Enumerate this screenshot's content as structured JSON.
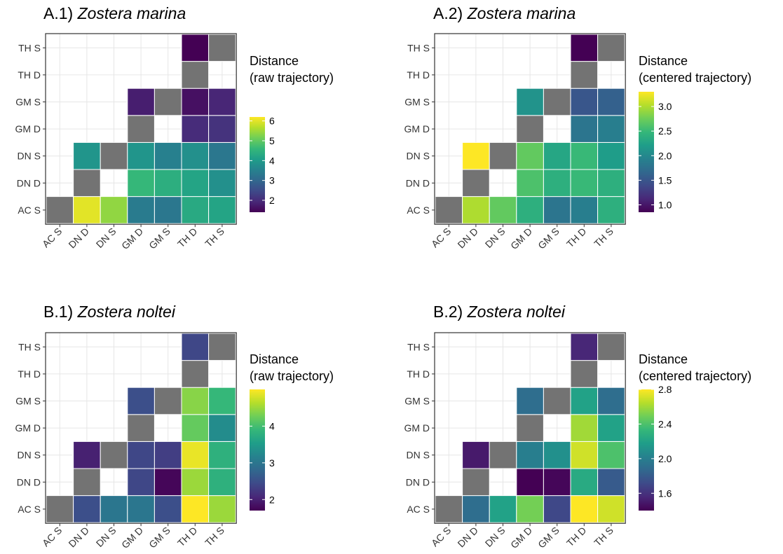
{
  "figure": {
    "background": "#ffffff"
  },
  "chart_data": [
    {
      "id": "A1",
      "type": "heatmap",
      "title_prefix": "A.1)",
      "title_species": "Zostera marina",
      "categories": [
        "AC S",
        "DN D",
        "DN S",
        "GM D",
        "GM S",
        "TH D",
        "TH S"
      ],
      "legend": {
        "title_line1": "Distance",
        "title_line2": "(raw trajectory)",
        "min": 1.4,
        "max": 6.2,
        "ticks": [
          2,
          3,
          4,
          5,
          6
        ]
      },
      "cells": [
        {
          "x": "AC S",
          "y": "AC S",
          "value": null
        },
        {
          "x": "DN D",
          "y": "AC S",
          "value": 6.0
        },
        {
          "x": "DN S",
          "y": "AC S",
          "value": 5.4
        },
        {
          "x": "GM D",
          "y": "AC S",
          "value": 3.4
        },
        {
          "x": "GM S",
          "y": "AC S",
          "value": 3.3
        },
        {
          "x": "TH D",
          "y": "AC S",
          "value": 4.3
        },
        {
          "x": "TH S",
          "y": "AC S",
          "value": 4.2
        },
        {
          "x": "DN D",
          "y": "DN D",
          "value": null
        },
        {
          "x": "GM D",
          "y": "DN D",
          "value": 4.6
        },
        {
          "x": "GM S",
          "y": "DN D",
          "value": 4.4
        },
        {
          "x": "TH D",
          "y": "DN D",
          "value": 4.2
        },
        {
          "x": "TH S",
          "y": "DN D",
          "value": 3.8
        },
        {
          "x": "DN D",
          "y": "DN S",
          "value": 3.9
        },
        {
          "x": "DN S",
          "y": "DN S",
          "value": null
        },
        {
          "x": "GM D",
          "y": "DN S",
          "value": 3.9
        },
        {
          "x": "GM S",
          "y": "DN S",
          "value": 3.5
        },
        {
          "x": "TH D",
          "y": "DN S",
          "value": 3.8
        },
        {
          "x": "TH S",
          "y": "DN S",
          "value": 3.3
        },
        {
          "x": "GM D",
          "y": "GM D",
          "value": null
        },
        {
          "x": "TH D",
          "y": "GM D",
          "value": 2.0
        },
        {
          "x": "TH S",
          "y": "GM D",
          "value": 2.1
        },
        {
          "x": "GM D",
          "y": "GM S",
          "value": 1.8
        },
        {
          "x": "GM S",
          "y": "GM S",
          "value": null
        },
        {
          "x": "TH D",
          "y": "GM S",
          "value": 1.6
        },
        {
          "x": "TH S",
          "y": "GM S",
          "value": 1.9
        },
        {
          "x": "TH D",
          "y": "TH D",
          "value": null
        },
        {
          "x": "TH D",
          "y": "TH S",
          "value": 1.4
        },
        {
          "x": "TH S",
          "y": "TH S",
          "value": null
        }
      ]
    },
    {
      "id": "A2",
      "type": "heatmap",
      "title_prefix": "A.2)",
      "title_species": "Zostera marina",
      "categories": [
        "AC S",
        "DN D",
        "DN S",
        "GM D",
        "GM S",
        "TH D",
        "TH S"
      ],
      "legend": {
        "title_line1": "Distance",
        "title_line2": "(centered trajectory)",
        "min": 0.85,
        "max": 3.3,
        "ticks": [
          1.0,
          1.5,
          2.0,
          2.5,
          3.0
        ]
      },
      "cells": [
        {
          "x": "AC S",
          "y": "AC S",
          "value": null
        },
        {
          "x": "DN D",
          "y": "AC S",
          "value": 3.0
        },
        {
          "x": "DN S",
          "y": "AC S",
          "value": 2.7
        },
        {
          "x": "GM D",
          "y": "AC S",
          "value": 2.4
        },
        {
          "x": "GM S",
          "y": "AC S",
          "value": 1.8
        },
        {
          "x": "TH D",
          "y": "AC S",
          "value": 1.9
        },
        {
          "x": "TH S",
          "y": "AC S",
          "value": 2.4
        },
        {
          "x": "DN D",
          "y": "DN D",
          "value": null
        },
        {
          "x": "GM D",
          "y": "DN D",
          "value": 2.6
        },
        {
          "x": "GM S",
          "y": "DN D",
          "value": 2.4
        },
        {
          "x": "TH D",
          "y": "DN D",
          "value": 2.5
        },
        {
          "x": "TH S",
          "y": "DN D",
          "value": 2.4
        },
        {
          "x": "DN D",
          "y": "DN S",
          "value": 3.3
        },
        {
          "x": "DN S",
          "y": "DN S",
          "value": null
        },
        {
          "x": "GM D",
          "y": "DN S",
          "value": 2.7
        },
        {
          "x": "GM S",
          "y": "DN S",
          "value": 2.3
        },
        {
          "x": "TH D",
          "y": "DN S",
          "value": 2.5
        },
        {
          "x": "TH S",
          "y": "DN S",
          "value": 2.2
        },
        {
          "x": "GM D",
          "y": "GM D",
          "value": null
        },
        {
          "x": "TH D",
          "y": "GM D",
          "value": 1.8
        },
        {
          "x": "TH S",
          "y": "GM D",
          "value": 1.9
        },
        {
          "x": "GM D",
          "y": "GM S",
          "value": 2.1
        },
        {
          "x": "GM S",
          "y": "GM S",
          "value": null
        },
        {
          "x": "TH D",
          "y": "GM S",
          "value": 1.5
        },
        {
          "x": "TH S",
          "y": "GM S",
          "value": 1.6
        },
        {
          "x": "TH D",
          "y": "TH D",
          "value": null
        },
        {
          "x": "TH D",
          "y": "TH S",
          "value": 0.85
        },
        {
          "x": "TH S",
          "y": "TH S",
          "value": null
        }
      ]
    },
    {
      "id": "B1",
      "type": "heatmap",
      "title_prefix": "B.1)",
      "title_species": "Zostera noltei",
      "categories": [
        "AC S",
        "DN D",
        "DN S",
        "GM D",
        "GM S",
        "TH D",
        "TH S"
      ],
      "legend": {
        "title_line1": "Distance",
        "title_line2": "(raw trajectory)",
        "min": 1.7,
        "max": 5.0,
        "ticks": [
          2,
          3,
          4
        ]
      },
      "cells": [
        {
          "x": "AC S",
          "y": "AC S",
          "value": null
        },
        {
          "x": "DN D",
          "y": "AC S",
          "value": 2.5
        },
        {
          "x": "DN S",
          "y": "AC S",
          "value": 3.0
        },
        {
          "x": "GM D",
          "y": "AC S",
          "value": 3.0
        },
        {
          "x": "GM S",
          "y": "AC S",
          "value": 2.5
        },
        {
          "x": "TH D",
          "y": "AC S",
          "value": 5.0
        },
        {
          "x": "TH S",
          "y": "AC S",
          "value": 4.5
        },
        {
          "x": "DN D",
          "y": "DN D",
          "value": null
        },
        {
          "x": "GM D",
          "y": "DN D",
          "value": 2.4
        },
        {
          "x": "GM S",
          "y": "DN D",
          "value": 1.75
        },
        {
          "x": "TH D",
          "y": "DN D",
          "value": 4.5
        },
        {
          "x": "TH S",
          "y": "DN D",
          "value": 3.8
        },
        {
          "x": "DN D",
          "y": "DN S",
          "value": 2.0
        },
        {
          "x": "DN S",
          "y": "DN S",
          "value": null
        },
        {
          "x": "GM D",
          "y": "DN S",
          "value": 2.4
        },
        {
          "x": "GM S",
          "y": "DN S",
          "value": 2.3
        },
        {
          "x": "TH D",
          "y": "DN S",
          "value": 4.9
        },
        {
          "x": "TH S",
          "y": "DN S",
          "value": 3.8
        },
        {
          "x": "GM D",
          "y": "GM D",
          "value": null
        },
        {
          "x": "TH D",
          "y": "GM D",
          "value": 4.2
        },
        {
          "x": "TH S",
          "y": "GM D",
          "value": 3.3
        },
        {
          "x": "GM D",
          "y": "GM S",
          "value": 2.5
        },
        {
          "x": "GM S",
          "y": "GM S",
          "value": null
        },
        {
          "x": "TH D",
          "y": "GM S",
          "value": 4.4
        },
        {
          "x": "TH S",
          "y": "GM S",
          "value": 3.9
        },
        {
          "x": "TH D",
          "y": "TH D",
          "value": null
        },
        {
          "x": "TH D",
          "y": "TH S",
          "value": 2.4
        },
        {
          "x": "TH S",
          "y": "TH S",
          "value": null
        }
      ]
    },
    {
      "id": "B2",
      "type": "heatmap",
      "title_prefix": "B.2)",
      "title_species": "Zostera noltei",
      "categories": [
        "AC S",
        "DN D",
        "DN S",
        "GM D",
        "GM S",
        "TH D",
        "TH S"
      ],
      "legend": {
        "title_line1": "Distance",
        "title_line2": "(centered trajectory)",
        "min": 1.4,
        "max": 2.8,
        "ticks": [
          1.6,
          2.0,
          2.4,
          2.8
        ]
      },
      "cells": [
        {
          "x": "AC S",
          "y": "AC S",
          "value": null
        },
        {
          "x": "DN D",
          "y": "AC S",
          "value": 1.9
        },
        {
          "x": "DN S",
          "y": "AC S",
          "value": 2.2
        },
        {
          "x": "GM D",
          "y": "AC S",
          "value": 2.5
        },
        {
          "x": "GM S",
          "y": "AC S",
          "value": 1.7
        },
        {
          "x": "TH D",
          "y": "AC S",
          "value": 2.8
        },
        {
          "x": "TH S",
          "y": "AC S",
          "value": 2.7
        },
        {
          "x": "DN D",
          "y": "DN D",
          "value": null
        },
        {
          "x": "GM D",
          "y": "DN D",
          "value": 1.4
        },
        {
          "x": "GM S",
          "y": "DN D",
          "value": 1.42
        },
        {
          "x": "TH D",
          "y": "DN D",
          "value": 2.25
        },
        {
          "x": "TH S",
          "y": "DN D",
          "value": 1.8
        },
        {
          "x": "DN D",
          "y": "DN S",
          "value": 1.5
        },
        {
          "x": "DN S",
          "y": "DN S",
          "value": null
        },
        {
          "x": "GM D",
          "y": "DN S",
          "value": 2.0
        },
        {
          "x": "GM S",
          "y": "DN S",
          "value": 2.1
        },
        {
          "x": "TH D",
          "y": "DN S",
          "value": 2.7
        },
        {
          "x": "TH S",
          "y": "DN S",
          "value": 2.4
        },
        {
          "x": "GM D",
          "y": "GM D",
          "value": null
        },
        {
          "x": "TH D",
          "y": "GM D",
          "value": 2.6
        },
        {
          "x": "TH S",
          "y": "GM D",
          "value": 2.2
        },
        {
          "x": "GM D",
          "y": "GM S",
          "value": 1.9
        },
        {
          "x": "GM S",
          "y": "GM S",
          "value": null
        },
        {
          "x": "TH D",
          "y": "GM S",
          "value": 2.2
        },
        {
          "x": "TH S",
          "y": "GM S",
          "value": 1.9
        },
        {
          "x": "TH D",
          "y": "TH D",
          "value": null
        },
        {
          "x": "TH D",
          "y": "TH S",
          "value": 1.55
        },
        {
          "x": "TH S",
          "y": "TH S",
          "value": null
        }
      ]
    }
  ]
}
